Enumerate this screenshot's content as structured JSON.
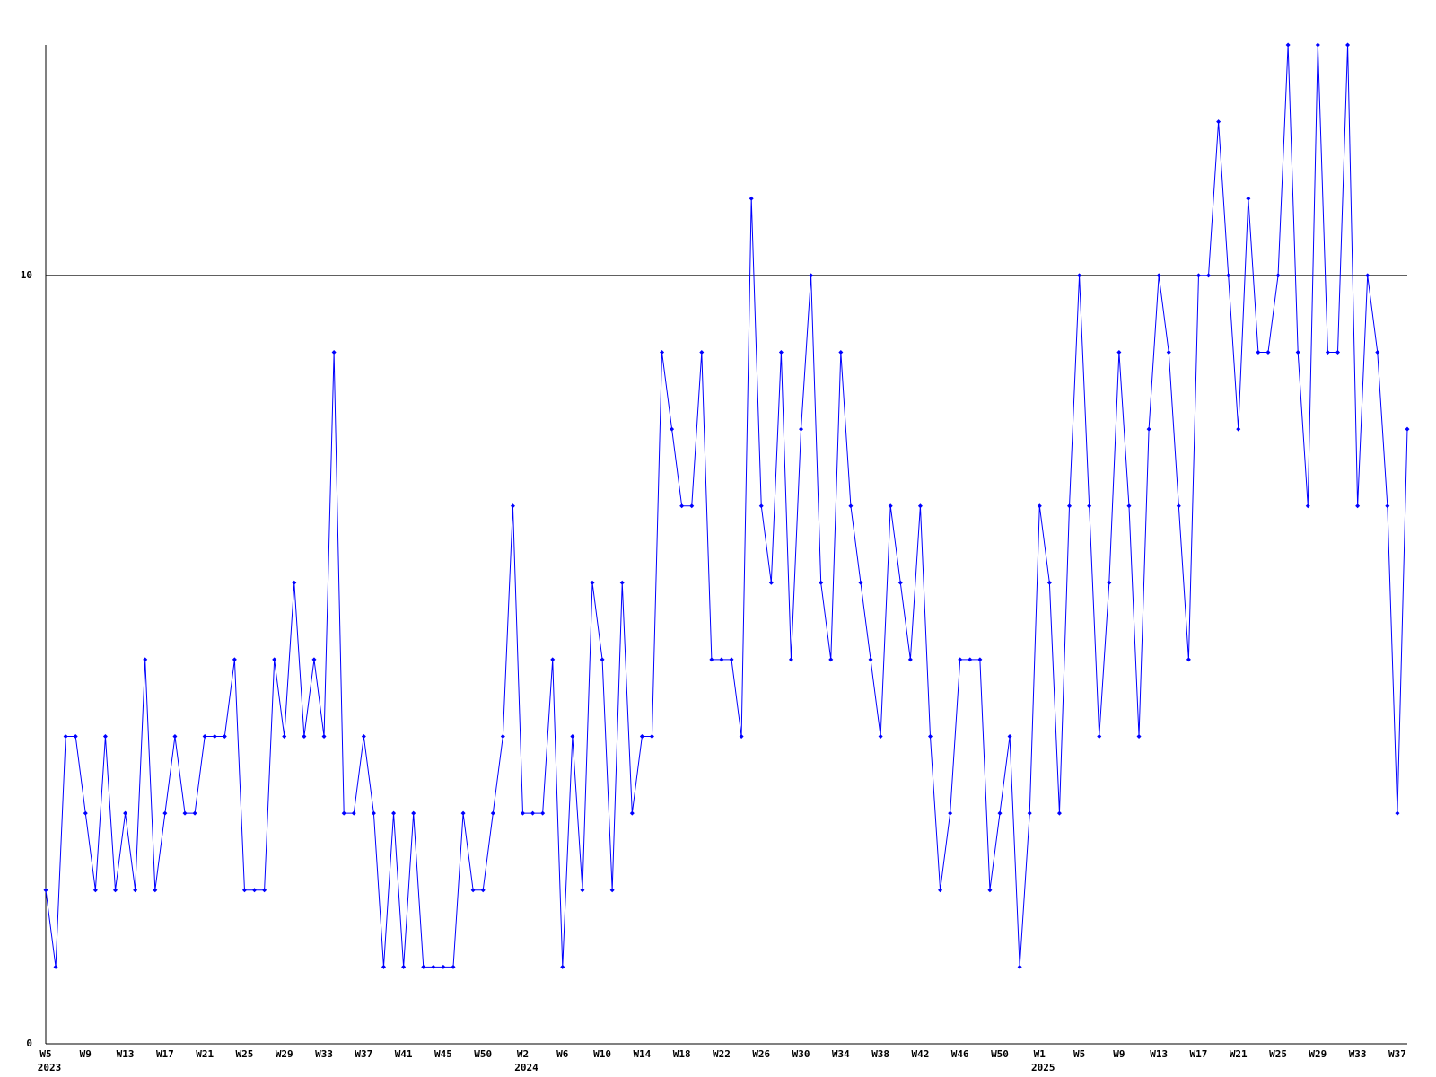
{
  "chart_data": {
    "type": "line",
    "categories": [
      "W5",
      null,
      null,
      null,
      "W9",
      null,
      null,
      null,
      "W13",
      null,
      null,
      null,
      "W17",
      null,
      null,
      null,
      "W21",
      null,
      null,
      null,
      "W25",
      null,
      null,
      null,
      "W29",
      null,
      null,
      null,
      "W33",
      null,
      null,
      null,
      "W37",
      null,
      null,
      null,
      "W41",
      null,
      null,
      null,
      "W45",
      null,
      null,
      null,
      "W50",
      null,
      null,
      null,
      "W2",
      null,
      null,
      null,
      "W6",
      null,
      null,
      null,
      "W10",
      null,
      null,
      null,
      "W14",
      null,
      null,
      null,
      "W18",
      null,
      null,
      null,
      "W22",
      null,
      null,
      null,
      "W26",
      null,
      null,
      null,
      "W30",
      null,
      null,
      null,
      "W34",
      null,
      null,
      null,
      "W38",
      null,
      null,
      null,
      "W42",
      null,
      null,
      null,
      "W46",
      null,
      null,
      null,
      "W50",
      null,
      null,
      null,
      "W1",
      null,
      null,
      null,
      "W5",
      null,
      null,
      null,
      "W9",
      null,
      null,
      null,
      "W13",
      null,
      null,
      null,
      "W17",
      null,
      null,
      null,
      "W21",
      null,
      null,
      null,
      "W25",
      null,
      null,
      null,
      "W29",
      null,
      null,
      null,
      "W33",
      null,
      null,
      null,
      "W37",
      null
    ],
    "years": {
      "0": "2023",
      "48": "2024",
      "100": "2025"
    },
    "series": [
      {
        "color": "#0000ff",
        "values": [
          2,
          1,
          4,
          4,
          3,
          2,
          4,
          2,
          3,
          2,
          5,
          2,
          3,
          4,
          3,
          3,
          4,
          4,
          4,
          5,
          2,
          2,
          2,
          5,
          4,
          6,
          4,
          5,
          4,
          9,
          3,
          3,
          4,
          3,
          1,
          3,
          1,
          3,
          1,
          1,
          1,
          1,
          3,
          2,
          2,
          3,
          4,
          7,
          3,
          3,
          3,
          5,
          1,
          4,
          2,
          6,
          5,
          2,
          6,
          3,
          4,
          4,
          9,
          8,
          7,
          7,
          9,
          5,
          5,
          5,
          4,
          11,
          7,
          6,
          9,
          5,
          8,
          10,
          6,
          5,
          9,
          7,
          6,
          5,
          4,
          7,
          6,
          5,
          7,
          4,
          2,
          3,
          5,
          5,
          5,
          2,
          3,
          4,
          1,
          3,
          7,
          6,
          3,
          7,
          10,
          7,
          4,
          6,
          9,
          7,
          4,
          8,
          10,
          9,
          7,
          5,
          10,
          10,
          12,
          10,
          8,
          11,
          9,
          9,
          10,
          13,
          9,
          7,
          13,
          9,
          9,
          13,
          7,
          10,
          9,
          7,
          3,
          8
        ]
      }
    ],
    "ylim": [
      0,
      13
    ],
    "yticks": [
      0,
      10
    ],
    "grid_ticks": [
      10
    ]
  }
}
